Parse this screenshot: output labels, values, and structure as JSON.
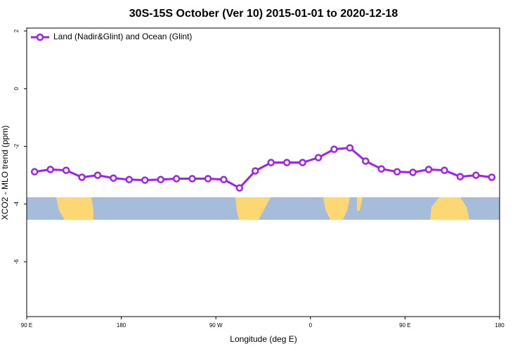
{
  "chart_data": {
    "type": "line",
    "title": "30S-15S October (Ver 10)   2015-01-01 to 2020-12-18",
    "xlabel": "Longitude (deg E)",
    "ylabel": "XCO2 - MLO trend (ppm)",
    "x": [
      97.5,
      112.5,
      127.5,
      142.5,
      157.5,
      172.5,
      187.5,
      202.5,
      217.5,
      232.5,
      247.5,
      262.5,
      277.5,
      292.5,
      307.5,
      322.5,
      337.5,
      352.5,
      367.5,
      382.5,
      397.5,
      412.5,
      427.5,
      442.5,
      457.5,
      472.5,
      487.5,
      502.5,
      517.5,
      532.5
    ],
    "series": [
      {
        "name": "Land (Nadir&Glint) and Ocean (Glint)",
        "color": "#a020f0",
        "values": [
          -2.88,
          -2.8,
          -2.83,
          -3.07,
          -3.0,
          -3.1,
          -3.15,
          -3.17,
          -3.15,
          -3.12,
          -3.12,
          -3.12,
          -3.15,
          -3.44,
          -2.85,
          -2.56,
          -2.56,
          -2.56,
          -2.39,
          -2.1,
          -2.05,
          -2.51,
          -2.78,
          -2.88,
          -2.9,
          -2.8,
          -2.83,
          -3.05,
          -3.0,
          -3.07
        ]
      }
    ],
    "xlim": [
      90,
      540
    ],
    "ylim": [
      -7.9,
      2.1
    ],
    "xticks": [
      {
        "value": 90,
        "label": "90 E"
      },
      {
        "value": 180,
        "label": "180"
      },
      {
        "value": 270,
        "label": "90 W"
      },
      {
        "value": 360,
        "label": "0"
      },
      {
        "value": 450,
        "label": "90 E"
      },
      {
        "value": 540,
        "label": "180"
      }
    ],
    "yticks": [
      2,
      0,
      -2,
      -4,
      -6
    ],
    "legend": "top-left"
  }
}
